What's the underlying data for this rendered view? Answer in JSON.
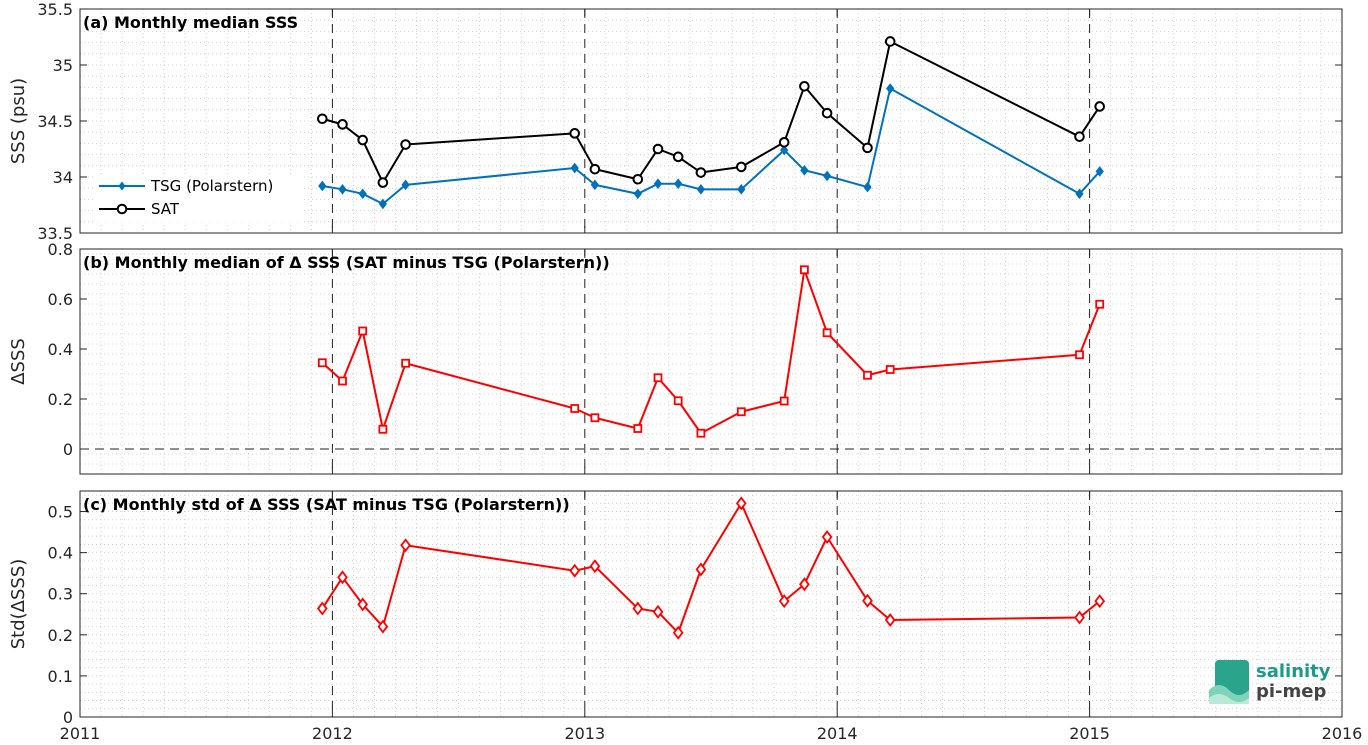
{
  "chart_data": [
    {
      "type": "line",
      "title": "(a) Monthly median SSS",
      "ylabel": "SSS (psu)",
      "ylim": [
        33.5,
        35.5
      ],
      "yticks": [
        "33.5",
        "34",
        "34.5",
        "35",
        "35.5"
      ],
      "xlim": [
        2011,
        2016
      ],
      "xticks": [
        "2011",
        "2012",
        "2013",
        "2014",
        "2015",
        "2016"
      ],
      "legend": "left",
      "series": [
        {
          "name": "TSG (Polarstern)",
          "color": "#0072bd",
          "marker": "diamond-filled",
          "points": [
            [
              2011.96,
              33.92
            ],
            [
              2012.04,
              33.89
            ],
            [
              2012.12,
              33.85
            ],
            [
              2012.2,
              33.76
            ],
            [
              2012.29,
              33.93
            ],
            [
              2012.96,
              34.08
            ],
            [
              2013.04,
              33.93
            ],
            [
              2013.21,
              33.85
            ],
            [
              2013.29,
              33.94
            ],
            [
              2013.37,
              33.94
            ],
            [
              2013.46,
              33.89
            ],
            [
              2013.62,
              33.89
            ],
            [
              2013.79,
              34.24
            ],
            [
              2013.87,
              34.06
            ],
            [
              2013.96,
              34.01
            ],
            [
              2014.12,
              33.91
            ],
            [
              2014.21,
              34.79
            ],
            [
              2014.96,
              33.85
            ],
            [
              2015.04,
              34.05
            ]
          ]
        },
        {
          "name": "SAT",
          "color": "#000000",
          "marker": "circle",
          "points": [
            [
              2011.96,
              34.52
            ],
            [
              2012.04,
              34.47
            ],
            [
              2012.12,
              34.33
            ],
            [
              2012.2,
              33.95
            ],
            [
              2012.29,
              34.29
            ],
            [
              2012.96,
              34.39
            ],
            [
              2013.04,
              34.07
            ],
            [
              2013.21,
              33.98
            ],
            [
              2013.29,
              34.25
            ],
            [
              2013.37,
              34.18
            ],
            [
              2013.46,
              34.04
            ],
            [
              2013.62,
              34.09
            ],
            [
              2013.79,
              34.31
            ],
            [
              2013.87,
              34.81
            ],
            [
              2013.96,
              34.57
            ],
            [
              2014.12,
              34.26
            ],
            [
              2014.21,
              35.21
            ],
            [
              2014.96,
              34.36
            ],
            [
              2015.04,
              34.63
            ]
          ]
        }
      ]
    },
    {
      "type": "line",
      "title": "(b) Monthly median of Δ SSS (SAT minus TSG (Polarstern))",
      "ylabel": "ΔSSS",
      "ylim": [
        -0.1,
        0.8
      ],
      "yticks": [
        "0",
        "0.2",
        "0.4",
        "0.6",
        "0.8"
      ],
      "xlim": [
        2011,
        2016
      ],
      "xticks": [
        "2011",
        "2012",
        "2013",
        "2014",
        "2015",
        "2016"
      ],
      "series": [
        {
          "color": "#ff0000",
          "marker": "square",
          "points": [
            [
              2011.96,
              0.345
            ],
            [
              2012.04,
              0.272
            ],
            [
              2012.12,
              0.472
            ],
            [
              2012.2,
              0.079
            ],
            [
              2012.29,
              0.343
            ],
            [
              2012.96,
              0.162
            ],
            [
              2013.04,
              0.125
            ],
            [
              2013.21,
              0.082
            ],
            [
              2013.29,
              0.285
            ],
            [
              2013.37,
              0.193
            ],
            [
              2013.46,
              0.063
            ],
            [
              2013.62,
              0.149
            ],
            [
              2013.79,
              0.192
            ],
            [
              2013.87,
              0.717
            ],
            [
              2013.96,
              0.465
            ],
            [
              2014.12,
              0.295
            ],
            [
              2014.21,
              0.318
            ],
            [
              2014.96,
              0.377
            ],
            [
              2015.04,
              0.579
            ]
          ]
        }
      ]
    },
    {
      "type": "line",
      "title": "(c) Monthly std of Δ SSS (SAT minus TSG (Polarstern))",
      "ylabel": "Std(ΔSSS)",
      "ylim": [
        0,
        0.55
      ],
      "yticks": [
        "0",
        "0.1",
        "0.2",
        "0.3",
        "0.4",
        "0.5"
      ],
      "xlim": [
        2011,
        2016
      ],
      "xticks": [
        "2011",
        "2012",
        "2013",
        "2014",
        "2015",
        "2016"
      ],
      "series": [
        {
          "color": "#ff0000",
          "marker": "diamond",
          "points": [
            [
              2011.96,
              0.264
            ],
            [
              2012.04,
              0.34
            ],
            [
              2012.12,
              0.274
            ],
            [
              2012.2,
              0.22
            ],
            [
              2012.29,
              0.418
            ],
            [
              2012.96,
              0.356
            ],
            [
              2013.04,
              0.367
            ],
            [
              2013.21,
              0.264
            ],
            [
              2013.29,
              0.256
            ],
            [
              2013.37,
              0.205
            ],
            [
              2013.46,
              0.359
            ],
            [
              2013.62,
              0.52
            ],
            [
              2013.79,
              0.282
            ],
            [
              2013.87,
              0.323
            ],
            [
              2013.96,
              0.438
            ],
            [
              2014.12,
              0.283
            ],
            [
              2014.21,
              0.236
            ],
            [
              2014.96,
              0.242
            ],
            [
              2015.04,
              0.282
            ]
          ]
        }
      ]
    }
  ],
  "logo": {
    "line1": "salinity",
    "line2": "pi-mep"
  }
}
